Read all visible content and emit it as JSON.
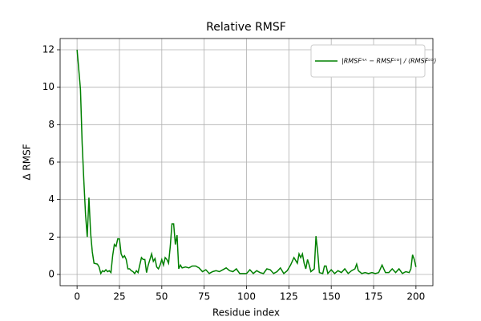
{
  "chart_data": {
    "type": "line",
    "title": "Relative RMSF",
    "x_label": "Residue index",
    "y_label": "Δ RMSF",
    "x": [
      0,
      2,
      3,
      4,
      5,
      6,
      7,
      8,
      9,
      10,
      12,
      13,
      14,
      15,
      16,
      17,
      18,
      19,
      20,
      21,
      22,
      23,
      24,
      25,
      26,
      27,
      28,
      29,
      30,
      31,
      32,
      33,
      34,
      35,
      36,
      37,
      38,
      39,
      40,
      41,
      42,
      43,
      44,
      45,
      46,
      47,
      48,
      49,
      50,
      51,
      52,
      53,
      54,
      55,
      56,
      57,
      58,
      59,
      60,
      61,
      62,
      64,
      66,
      68,
      70,
      72,
      74,
      76,
      78,
      80,
      82,
      84,
      86,
      88,
      90,
      92,
      94,
      96,
      98,
      100,
      102,
      104,
      106,
      108,
      110,
      112,
      114,
      116,
      118,
      120,
      122,
      124,
      126,
      128,
      130,
      131,
      132,
      133,
      134,
      135,
      136,
      137,
      138,
      140,
      141,
      142,
      143,
      145,
      146,
      147,
      148,
      150,
      152,
      154,
      156,
      158,
      160,
      162,
      164,
      165,
      166,
      168,
      170,
      172,
      174,
      176,
      178,
      180,
      182,
      184,
      186,
      188,
      190,
      192,
      194,
      196,
      197,
      198,
      199,
      200
    ],
    "series": [
      {
        "name": "|RMSFᴬᴬ − RMSFᶜᴳ| / ⟨RMSFᶜᴳ⟩",
        "color": "#008000",
        "values": [
          12,
          9.9,
          7,
          5,
          3.2,
          2.0,
          4.1,
          2.2,
          1.2,
          0.6,
          0.55,
          0.4,
          0.05,
          0.2,
          0.15,
          0.25,
          0.15,
          0.2,
          0.1,
          1.0,
          1.6,
          1.5,
          1.9,
          1.9,
          1.1,
          0.9,
          1.0,
          0.8,
          0.3,
          0.3,
          0.2,
          0.15,
          0.05,
          0.2,
          0.1,
          0.5,
          0.9,
          0.8,
          0.8,
          0.1,
          0.5,
          0.8,
          1.1,
          0.7,
          0.85,
          0.4,
          0.3,
          0.5,
          0.8,
          0.5,
          0.9,
          0.8,
          0.6,
          1.5,
          2.7,
          2.7,
          1.6,
          2.1,
          0.3,
          0.5,
          0.35,
          0.4,
          0.35,
          0.45,
          0.45,
          0.35,
          0.15,
          0.25,
          0.05,
          0.15,
          0.2,
          0.15,
          0.25,
          0.35,
          0.2,
          0.15,
          0.3,
          0.05,
          0.05,
          0.05,
          0.25,
          0.05,
          0.2,
          0.1,
          0.05,
          0.3,
          0.25,
          0.05,
          0.15,
          0.35,
          0.05,
          0.2,
          0.5,
          0.9,
          0.6,
          1.1,
          0.9,
          1.1,
          0.6,
          0.3,
          0.8,
          0.5,
          0.15,
          0.3,
          2.05,
          1.2,
          0.1,
          0.05,
          0.45,
          0.45,
          0.05,
          0.25,
          0.05,
          0.2,
          0.1,
          0.3,
          0.05,
          0.2,
          0.3,
          0.55,
          0.2,
          0.05,
          0.1,
          0.05,
          0.1,
          0.05,
          0.1,
          0.5,
          0.1,
          0.1,
          0.3,
          0.1,
          0.3,
          0.05,
          0.15,
          0.1,
          0.3,
          1.05,
          0.8,
          0.4
        ]
      }
    ],
    "xlim": [
      -10,
      210
    ],
    "ylim": [
      -0.6,
      12.6
    ],
    "xticks": [
      0,
      25,
      50,
      75,
      100,
      125,
      150,
      175,
      200
    ],
    "yticks": [
      0,
      2,
      4,
      6,
      8,
      10,
      12
    ],
    "grid": true,
    "legend": "upper right"
  }
}
